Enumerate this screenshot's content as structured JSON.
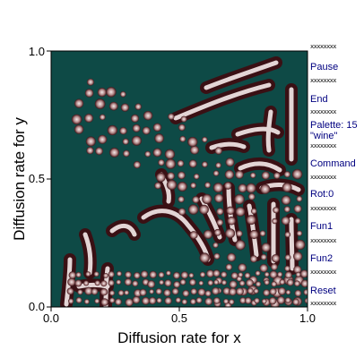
{
  "plot": {
    "xlabel": "Diffusion rate for x",
    "ylabel": "Diffusion rate for y",
    "x_ticks": [
      "0.0",
      "0.5",
      "1.0"
    ],
    "y_ticks": [
      "0.0",
      "0.5",
      "1.0"
    ],
    "colors": {
      "background": "#0e4a46",
      "blob_edge": "#3a1014",
      "blob_mid": "#9a6a6a",
      "blob_core": "#f2e6e6"
    }
  },
  "menu": {
    "separator": "xxxxxxxx",
    "items": [
      {
        "id": "pause",
        "label": "Pause"
      },
      {
        "id": "end",
        "label": "End"
      },
      {
        "id": "palette",
        "label": "Palette: 15",
        "label2": "\"wine\""
      },
      {
        "id": "command",
        "label": "Command"
      },
      {
        "id": "rot",
        "label": "Rot:0"
      },
      {
        "id": "fun1",
        "label": "Fun1"
      },
      {
        "id": "fun2",
        "label": "Fun2"
      },
      {
        "id": "reset",
        "label": "Reset"
      }
    ]
  }
}
